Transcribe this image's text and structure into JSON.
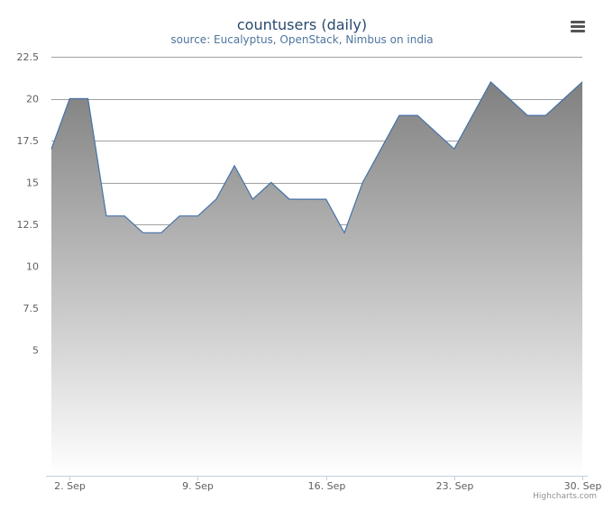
{
  "chart_data": {
    "type": "area",
    "title": "countusers (daily)",
    "subtitle": "source: Eucalyptus, OpenStack, Nimbus on india",
    "x_start": "2013-09-01",
    "x_tick_labels": [
      "2. Sep",
      "9. Sep",
      "16. Sep",
      "23. Sep",
      "30. Sep"
    ],
    "y_tick_labels": [
      "5",
      "7.5",
      "10",
      "12.5",
      "15",
      "17.5",
      "20",
      "22.5"
    ],
    "ylim": [
      -2.5,
      22.5
    ],
    "y_gridlines": [
      0,
      2.5,
      5,
      7.5,
      10,
      12.5,
      15,
      17.5,
      20,
      22.5
    ],
    "grid": true,
    "legend": "none",
    "x": [
      "1. Sep",
      "2. Sep",
      "3. Sep",
      "4. Sep",
      "5. Sep",
      "6. Sep",
      "7. Sep",
      "8. Sep",
      "9. Sep",
      "10. Sep",
      "11. Sep",
      "12. Sep",
      "13. Sep",
      "14. Sep",
      "15. Sep",
      "16. Sep",
      "17. Sep",
      "18. Sep",
      "19. Sep",
      "20. Sep",
      "21. Sep",
      "22. Sep",
      "23. Sep",
      "24. Sep",
      "25. Sep",
      "26. Sep",
      "27. Sep",
      "28. Sep",
      "29. Sep",
      "30. Sep"
    ],
    "values": [
      17,
      20,
      20,
      13,
      13,
      12,
      12,
      13,
      13,
      14,
      16,
      14,
      15,
      14,
      14,
      14,
      12,
      15,
      17,
      19,
      19,
      18,
      17,
      19,
      21,
      20,
      19,
      19,
      20,
      21
    ],
    "colors": {
      "line": "#4572a7",
      "fill_top": "#808080",
      "fill_bottom": "#ffffff",
      "grid": "#a0a0a0",
      "title": "#274b6d",
      "subtitle": "#4d759e"
    }
  },
  "credits": "Highcharts.com",
  "menu_icon": "hamburger-menu-icon"
}
